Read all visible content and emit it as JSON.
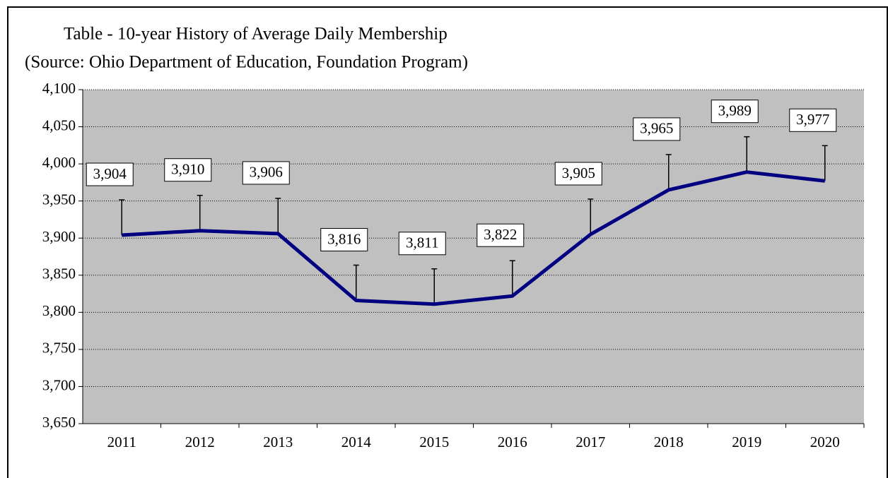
{
  "chart_data": {
    "type": "line",
    "title": "Table - 10-year History of Average Daily Membership",
    "subtitle": "(Source: Ohio Department of Education, Foundation Program)",
    "categories": [
      "2011",
      "2012",
      "2013",
      "2014",
      "2015",
      "2016",
      "2017",
      "2018",
      "2019",
      "2020"
    ],
    "series": [
      {
        "color": "#000080",
        "values": [
          3904,
          3910,
          3906,
          3816,
          3811,
          3822,
          3905,
          3965,
          3989,
          3977
        ],
        "value_labels": [
          "3,904",
          "3,910",
          "3,906",
          "3,816",
          "3,811",
          "3,822",
          "3,905",
          "3,965",
          "3,989",
          "3,977"
        ]
      }
    ],
    "ylim": [
      3650,
      4100
    ],
    "yticks": [
      {
        "value": 3650,
        "label": "3,650"
      },
      {
        "value": 3700,
        "label": "3,700"
      },
      {
        "value": 3750,
        "label": "3,750"
      },
      {
        "value": 3800,
        "label": "3,800"
      },
      {
        "value": 3850,
        "label": "3,850"
      },
      {
        "value": 3900,
        "label": "3,900"
      },
      {
        "value": 3950,
        "label": "3,950"
      },
      {
        "value": 4000,
        "label": "4,000"
      },
      {
        "value": 4050,
        "label": "4,050"
      },
      {
        "value": 4100,
        "label": "4,100"
      }
    ],
    "grid": true,
    "plot_background": "#c0c0c0"
  }
}
